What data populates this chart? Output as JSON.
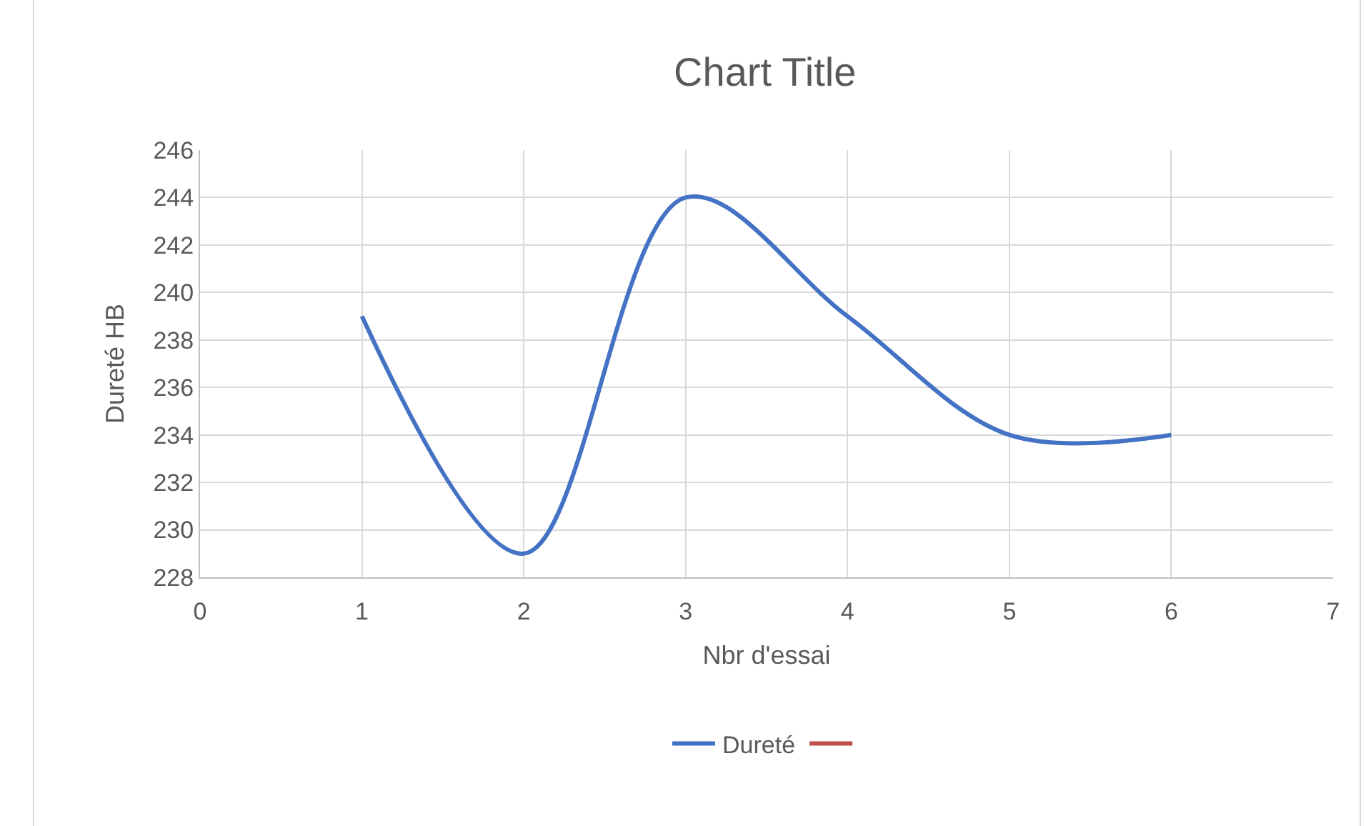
{
  "chart_data": {
    "type": "line",
    "title": "Chart Title",
    "xlabel": "Nbr d'essai",
    "ylabel": "Dureté HB",
    "series": [
      {
        "name": "Dureté",
        "color": "#4472c4",
        "x": [
          1,
          2,
          3,
          4,
          5,
          6
        ],
        "values": [
          239,
          229,
          244,
          239,
          234,
          234
        ]
      },
      {
        "color": "#c0504d"
      }
    ],
    "xlim": [
      0,
      7
    ],
    "xticks": [
      0,
      1,
      2,
      3,
      4,
      5,
      6,
      7
    ],
    "ylim": [
      228,
      246
    ],
    "yticks": [
      228,
      230,
      232,
      234,
      236,
      238,
      240,
      242,
      244,
      246
    ],
    "grid": true,
    "legend": "bottom",
    "marker": "none",
    "line_style": "solid"
  }
}
